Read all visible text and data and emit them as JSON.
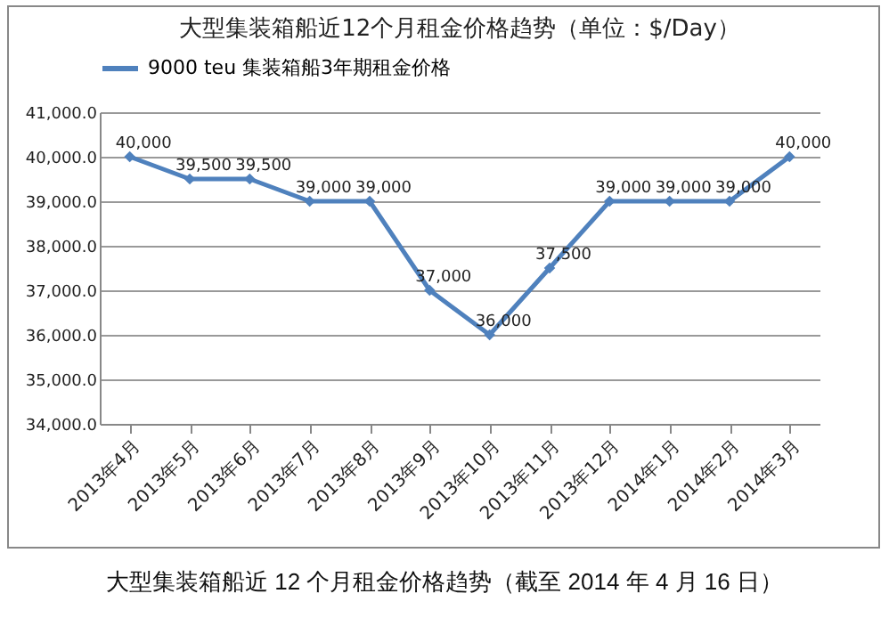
{
  "chart_data": {
    "type": "line",
    "title": "大型集装箱船近12个月租金价格趋势（单位：$/Day）",
    "categories": [
      "2013年4月",
      "2013年5月",
      "2013年6月",
      "2013年7月",
      "2013年8月",
      "2013年9月",
      "2013年10月",
      "2013年11月",
      "2013年12月",
      "2014年1月",
      "2014年2月",
      "2014年3月"
    ],
    "series": [
      {
        "name": "9000 teu 集装箱船3年期租金价格",
        "color": "#4f81bd",
        "values": [
          40000,
          39500,
          39500,
          39000,
          39000,
          37000,
          36000,
          37500,
          39000,
          39000,
          39000,
          40000
        ],
        "value_labels": [
          "40,000",
          "39,500",
          "39,500",
          "39,000",
          "39,000",
          "37,000",
          "36,000",
          "37,500",
          "39,000",
          "39,000",
          "39,000",
          "40,000"
        ]
      }
    ],
    "ylim": [
      34000,
      41000
    ],
    "yticks": [
      {
        "value": 34000,
        "label": "34,000.0"
      },
      {
        "value": 35000,
        "label": "35,000.0"
      },
      {
        "value": 36000,
        "label": "36,000.0"
      },
      {
        "value": 37000,
        "label": "37,000.0"
      },
      {
        "value": 38000,
        "label": "38,000.0"
      },
      {
        "value": 39000,
        "label": "39,000.0"
      },
      {
        "value": 40000,
        "label": "40,000.0"
      },
      {
        "value": 41000,
        "label": "41,000.0"
      }
    ],
    "grid": "y",
    "legend": "top",
    "marker": "diamond",
    "line_style": "solid",
    "annotations": [
      "大型集装箱船近 12 个月租金价格趋势（截至 2014 年 4 月 16 日）"
    ]
  }
}
